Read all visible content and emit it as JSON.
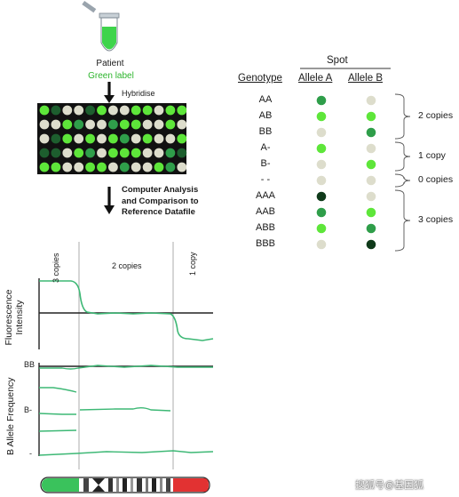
{
  "patient": {
    "label": "Patient",
    "sublabel": "Green label"
  },
  "steps": {
    "hybridise": "Hybridise",
    "analysis_line1": "Computer Analysis",
    "analysis_line2": "and Comparison to",
    "analysis_line3": "Reference Datafile"
  },
  "colors": {
    "bright_green": "#5ee63a",
    "mid_green": "#2f9e4a",
    "dark_green": "#1d5e2e",
    "very_dark_green": "#0f3a1a",
    "grey_spot": "#ddddcc",
    "trace_green": "#3db875",
    "chromo_green": "#3ac25c",
    "chromo_red": "#e23232"
  },
  "microarray": {
    "grid": [
      [
        "b",
        "d",
        "g",
        "g",
        "d",
        "b",
        "g",
        "g",
        "b",
        "b",
        "g",
        "b",
        "b"
      ],
      [
        "g",
        "g",
        "b",
        "m",
        "g",
        "g",
        "m",
        "b",
        "b",
        "g",
        "g",
        "b",
        "g"
      ],
      [
        "g",
        "d",
        "b",
        "g",
        "b",
        "g",
        "b",
        "m",
        "g",
        "b",
        "g",
        "g",
        "b"
      ],
      [
        "d",
        "d",
        "g",
        "b",
        "m",
        "g",
        "b",
        "b",
        "b",
        "g",
        "g",
        "m",
        "d"
      ],
      [
        "b",
        "b",
        "g",
        "g",
        "b",
        "b",
        "g",
        "m",
        "g",
        "g",
        "b",
        "m",
        "g"
      ]
    ]
  },
  "table": {
    "title": "Spot",
    "headers": {
      "genotype": "Genotype",
      "allele_a": "Allele A",
      "allele_b": "Allele B"
    },
    "rows": [
      {
        "genotype": "AA",
        "a": "mid_green",
        "b": "grey_spot"
      },
      {
        "genotype": "AB",
        "a": "bright_green",
        "b": "bright_green"
      },
      {
        "genotype": "BB",
        "a": "grey_spot",
        "b": "mid_green"
      },
      {
        "genotype": "A-",
        "a": "bright_green",
        "b": "grey_spot"
      },
      {
        "genotype": "B-",
        "a": "grey_spot",
        "b": "bright_green"
      },
      {
        "genotype": "- -",
        "a": "grey_spot",
        "b": "grey_spot"
      },
      {
        "genotype": "AAA",
        "a": "very_dark_green",
        "b": "grey_spot"
      },
      {
        "genotype": "AAB",
        "a": "mid_green",
        "b": "bright_green"
      },
      {
        "genotype": "ABB",
        "a": "bright_green",
        "b": "mid_green"
      },
      {
        "genotype": "BBB",
        "a": "grey_spot",
        "b": "very_dark_green"
      }
    ],
    "groups": [
      {
        "label": "2 copies",
        "from": 0,
        "to": 2
      },
      {
        "label": "1 copy",
        "from": 3,
        "to": 4
      },
      {
        "label": "0 copies",
        "from": 5,
        "to": 5
      },
      {
        "label": "3 copies",
        "from": 6,
        "to": 9
      }
    ]
  },
  "plot": {
    "regions": [
      "3 copies",
      "2 copies",
      "1 copy"
    ],
    "fluorescence_label": "Fluorescence Intensity",
    "baf_label": "B Allele Frequency",
    "baf_ticks": [
      "BB",
      "B-",
      "-"
    ]
  },
  "watermark": "搜狐号@基因狐"
}
